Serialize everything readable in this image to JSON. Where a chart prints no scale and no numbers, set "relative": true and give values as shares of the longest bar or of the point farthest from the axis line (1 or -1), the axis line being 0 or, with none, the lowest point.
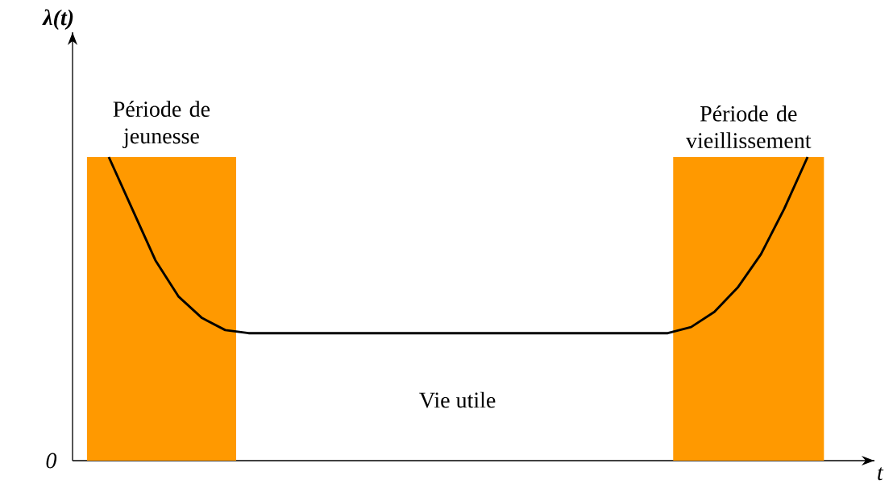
{
  "chart_data": {
    "type": "line",
    "relative": true,
    "xlabel": "t",
    "marker": "none",
    "line_style": "solid",
    "categories": [
      null,
      null,
      null,
      null,
      null,
      null,
      null,
      null,
      null,
      null,
      null,
      null,
      null,
      null,
      null,
      null,
      null,
      null,
      null,
      null,
      null,
      null,
      null,
      null,
      null,
      null,
      null,
      null,
      null,
      null,
      null
    ],
    "series": [
      {
        "color": "#000000",
        "values": [
          1.0,
          0.83,
          0.66,
          0.54,
          0.47,
          0.43,
          0.42,
          0.42,
          0.42,
          0.42,
          0.42,
          0.42,
          0.42,
          0.42,
          0.42,
          0.42,
          0.42,
          0.42,
          0.42,
          0.42,
          0.42,
          0.42,
          0.42,
          0.42,
          0.42,
          0.44,
          0.49,
          0.57,
          0.68,
          0.83,
          1.0
        ]
      }
    ],
    "annotations": [
      "λ(t)",
      "Période de jeunesse",
      "Période de vieillissement",
      "Vie utile",
      "0"
    ]
  }
}
